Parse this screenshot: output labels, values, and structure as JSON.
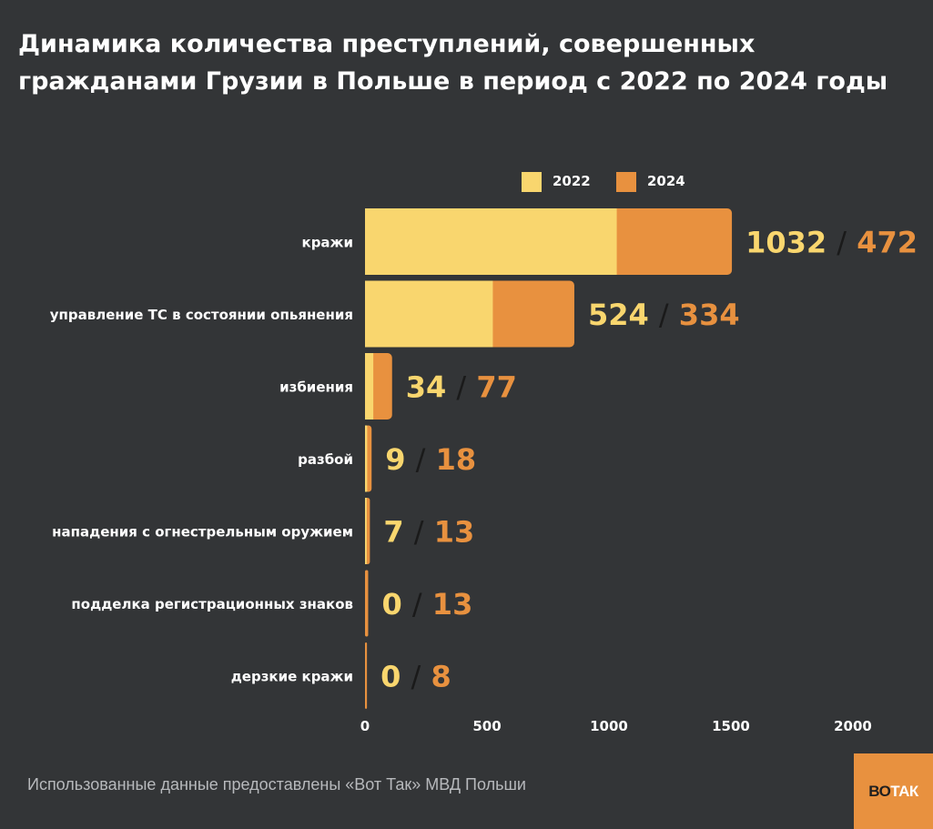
{
  "chart_data": {
    "type": "bar",
    "orientation": "horizontal",
    "stacked": true,
    "title": "Динамика количества преступлений, совершенных гражданами Грузии в Польше в период с 2022 по 2024 годы",
    "categories": [
      "кражи",
      "управление ТС в состоянии опьянения",
      "избиения",
      "разбой",
      "нападения с огнестрельным оружием",
      "подделка регистрационных знаков",
      "дерзкие кражи"
    ],
    "series": [
      {
        "name": "2022",
        "values": [
          1032,
          524,
          34,
          9,
          7,
          0,
          0
        ],
        "color": "#f9d66e"
      },
      {
        "name": "2024",
        "values": [
          472,
          334,
          77,
          18,
          13,
          13,
          8
        ],
        "color": "#e8913f"
      }
    ],
    "xlim": [
      0,
      2000
    ],
    "xticks": [
      0,
      500,
      1000,
      1500,
      2000
    ],
    "value_label_separator": "/",
    "legend_position": "top-right",
    "grid": false
  },
  "legend": {
    "items": [
      {
        "label": "2022",
        "color": "#f9d66e"
      },
      {
        "label": "2024",
        "color": "#e8913f"
      }
    ]
  },
  "footer": {
    "source": "Использованные данные предоставлены «Вот Так» МВД Польши"
  },
  "logo": {
    "part1": "ВО",
    "part2": "ТАК"
  },
  "colors": {
    "background": "#333537",
    "bar_2022": "#f9d66e",
    "bar_2024": "#e8913f",
    "separator": "#1a1a1a"
  }
}
